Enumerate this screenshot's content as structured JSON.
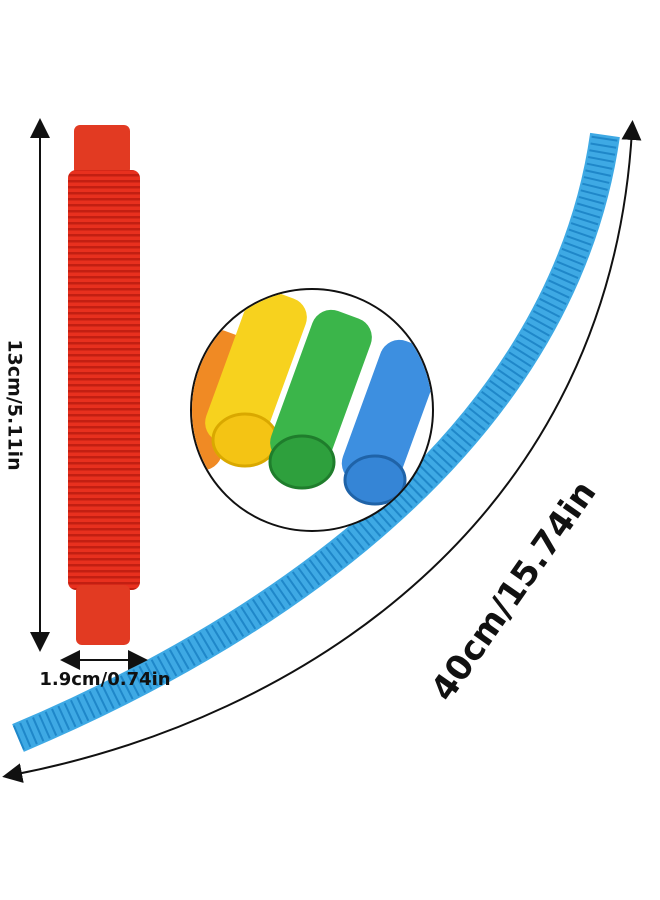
{
  "labels": {
    "length_short": "13cm/5.11in",
    "diameter": "1.9cm/0.74in",
    "length_long": "40cm/15.74in"
  }
}
